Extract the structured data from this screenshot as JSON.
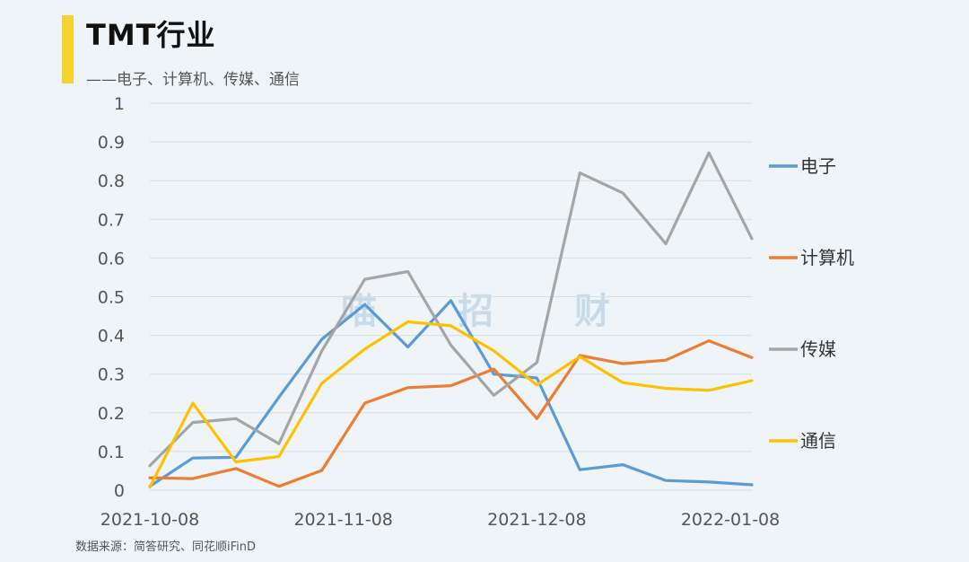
{
  "header": {
    "title": "TMT行业",
    "subtitle": "——电子、计算机、传媒、通信"
  },
  "source": "数据来源：简答研究、同花顺iFinD",
  "watermark": "喵招财",
  "colors": {
    "accent": "#f7d22e",
    "background": "#eef4f8",
    "grid": "#d6dee5"
  },
  "chart_data": {
    "type": "line",
    "title": "TMT行业",
    "xlabel": "",
    "ylabel": "",
    "ylim": [
      0,
      1
    ],
    "yticks": [
      "0",
      "0.1",
      "0.2",
      "0.3",
      "0.4",
      "0.5",
      "0.6",
      "0.7",
      "0.8",
      "0.9",
      "1"
    ],
    "x_tick_labels": [
      "2021-10-08",
      "2021-11-08",
      "2021-12-08",
      "2022-01-08"
    ],
    "x_tick_index": [
      0,
      4.5,
      9,
      13.5
    ],
    "n_points": 15,
    "grid": true,
    "legend": "right",
    "series": [
      {
        "name": "电子",
        "color": "#5b9bd5",
        "values": [
          0.01,
          0.083,
          0.085,
          0.24,
          0.39,
          0.48,
          0.37,
          0.49,
          0.3,
          0.29,
          0.053,
          0.066,
          0.025,
          0.021,
          0.014
        ]
      },
      {
        "name": "计算机",
        "color": "#ed7d31",
        "values": [
          0.032,
          0.03,
          0.056,
          0.01,
          0.051,
          0.225,
          0.265,
          0.27,
          0.313,
          0.185,
          0.348,
          0.327,
          0.336,
          0.386,
          0.343
        ]
      },
      {
        "name": "传媒",
        "color": "#a5a5a5",
        "values": [
          0.063,
          0.175,
          0.185,
          0.12,
          0.36,
          0.545,
          0.565,
          0.375,
          0.245,
          0.33,
          0.82,
          0.768,
          0.637,
          0.872,
          0.65
        ]
      },
      {
        "name": "通信",
        "color": "#ffc000",
        "values": [
          0.008,
          0.225,
          0.073,
          0.087,
          0.276,
          0.365,
          0.435,
          0.425,
          0.36,
          0.272,
          0.345,
          0.278,
          0.263,
          0.258,
          0.283
        ]
      }
    ]
  }
}
